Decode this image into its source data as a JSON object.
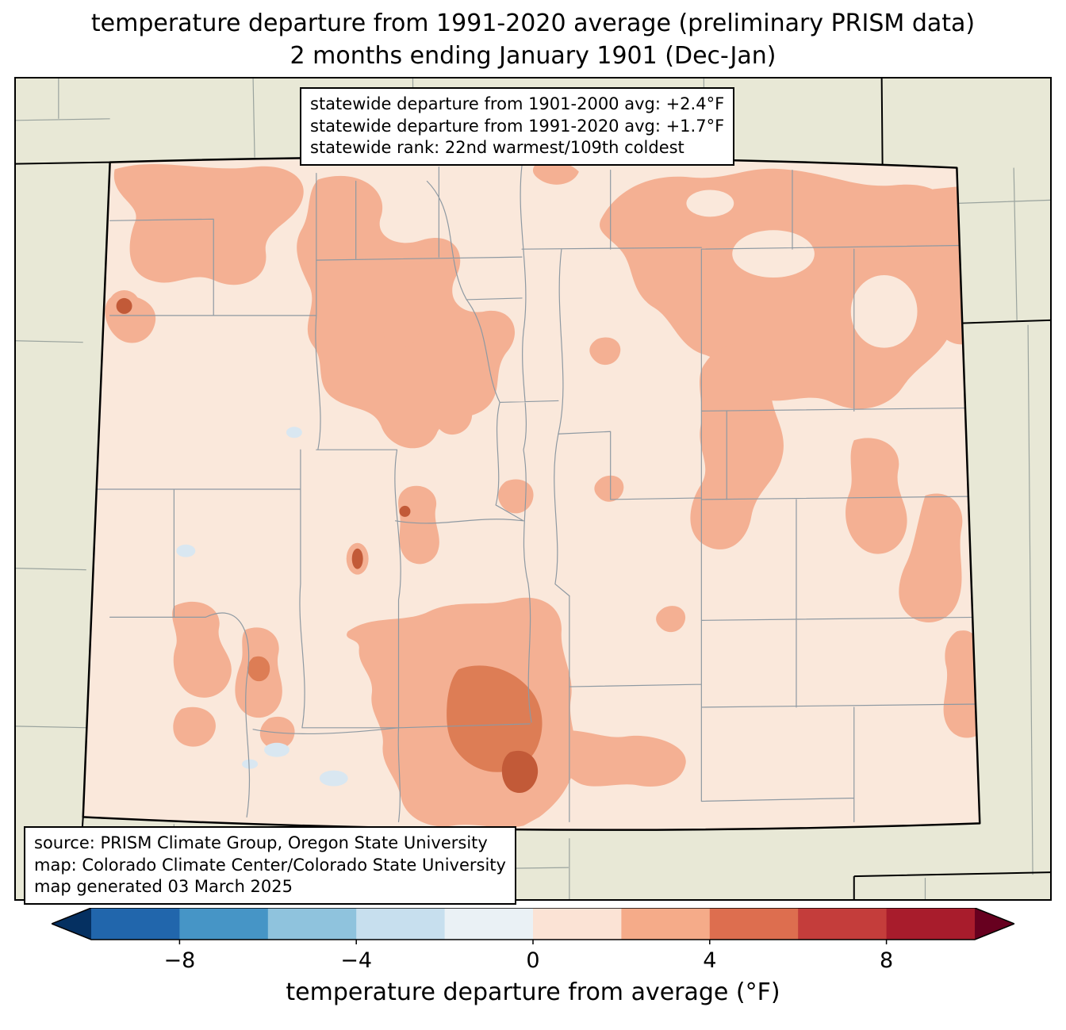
{
  "title": {
    "line1": "temperature departure from 1991-2020 average (preliminary PRISM data)",
    "line2": "2 months ending January 1901 (Dec-Jan)"
  },
  "stats_box": {
    "line1": "statewide departure from 1901-2000 avg: +2.4°F",
    "line2": "statewide departure from 1991-2020 avg: +1.7°F",
    "line3": "statewide rank: 22nd warmest/109th coldest"
  },
  "source_box": {
    "line1": "source: PRISM Climate Group, Oregon State University",
    "line2": "map: Colorado Climate Center/Colorado State University",
    "line3": "map generated 03 March 2025"
  },
  "colorbar": {
    "label": "temperature departure from average (°F)",
    "ticks": [
      "−8",
      "−4",
      "0",
      "4",
      "8"
    ],
    "tick_values": [
      -8,
      -4,
      0,
      4,
      8
    ],
    "range": [
      -10,
      10
    ],
    "segment_colors": [
      "#2166ac",
      "#4695c6",
      "#8fc3dd",
      "#c7dfee",
      "#eaf1f5",
      "#fbe3d5",
      "#f5ab89",
      "#dd6e4f",
      "#c43d3b",
      "#a81c2c"
    ],
    "arrow_left_color": "#053061",
    "arrow_right_color": "#67001f"
  },
  "map": {
    "region": "Colorado",
    "colors": {
      "beige": "#e8e8d6",
      "state-base": "#fae8db",
      "warm1": "#f4b093",
      "warm2": "#dd7d55",
      "warm3": "#c25a38",
      "cool1": "#d9e7f1",
      "county-line": "#8e99a2",
      "outside-line": "#9aa39e"
    }
  },
  "chart_data": {
    "type": "heatmap",
    "title": "temperature departure from 1991-2020 average (preliminary PRISM data)",
    "subtitle": "2 months ending January 1901 (Dec-Jan)",
    "region": "Colorado",
    "statewide_departure_from_1901_2000_avg_F": "+2.4",
    "statewide_departure_from_1991_2020_avg_F": "+1.7",
    "statewide_rank": "22nd warmest/109th coldest",
    "colorbar_label": "temperature departure from average (°F)",
    "colorbar_ticks": [
      -8,
      -4,
      0,
      4,
      8
    ],
    "colorbar_range_F": [
      -10,
      10
    ],
    "source": "PRISM Climate Group, Oregon State University",
    "map_credit": "Colorado Climate Center/Colorado State University",
    "map_generated": "03 March 2025"
  }
}
